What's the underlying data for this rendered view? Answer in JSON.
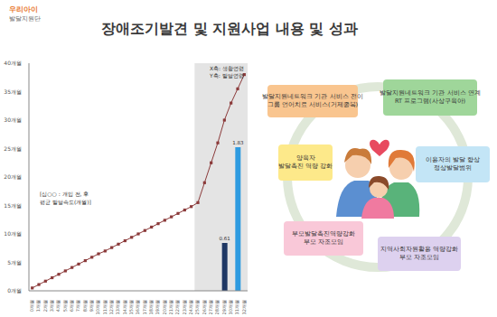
{
  "header": {
    "logo": [
      "우리아이",
      "발달지원단"
    ],
    "title": "장애조기발견 및 지원사업 내용 및 성과"
  },
  "chart_data": {
    "type": "line",
    "categories": [
      "0개월",
      "1개월",
      "2개월",
      "3개월",
      "4개월",
      "5개월",
      "6개월",
      "7개월",
      "8개월",
      "9개월",
      "10개월",
      "11개월",
      "12개월",
      "13개월",
      "14개월",
      "15개월",
      "16개월",
      "17개월",
      "18개월",
      "19개월",
      "20개월",
      "21개월",
      "22개월",
      "23개월",
      "24개월",
      "25개월",
      "26개월",
      "27개월",
      "28개월",
      "29개월",
      "30개월",
      "31개월",
      "32개월"
    ],
    "series": [
      {
        "type": "line",
        "color": "#8b3a3a",
        "marker": "square",
        "values": [
          0.5,
          1.1,
          1.7,
          2.3,
          2.9,
          3.5,
          4.1,
          4.7,
          5.3,
          5.9,
          6.5,
          7.0,
          7.6,
          8.2,
          8.8,
          9.4,
          10.0,
          10.6,
          11.2,
          11.8,
          12.4,
          13.0,
          13.6,
          14.2,
          14.8,
          15.5,
          19,
          22.5,
          26,
          30,
          33,
          35.5,
          38
        ]
      },
      {
        "type": "bar",
        "axis": "y2",
        "data_labels": true,
        "values": [
          null,
          null,
          null,
          null,
          null,
          null,
          null,
          null,
          null,
          null,
          null,
          null,
          null,
          null,
          null,
          null,
          null,
          null,
          null,
          null,
          null,
          null,
          null,
          null,
          null,
          null,
          null,
          null,
          null,
          0.61,
          null,
          1.83,
          null
        ],
        "colors": [
          null,
          null,
          null,
          null,
          null,
          null,
          null,
          null,
          null,
          null,
          null,
          null,
          null,
          null,
          null,
          null,
          null,
          null,
          null,
          null,
          null,
          null,
          null,
          null,
          null,
          null,
          null,
          null,
          null,
          "#1f3864",
          null,
          "#2e9be0",
          null
        ]
      }
    ],
    "ylim": [
      0,
      40
    ],
    "yticks": [
      {
        "value": 0,
        "label": "0개월"
      },
      {
        "value": 5,
        "label": "5개월"
      },
      {
        "value": 10,
        "label": "10개월"
      },
      {
        "value": 15,
        "label": "15개월"
      },
      {
        "value": 20,
        "label": "20개월"
      },
      {
        "value": 25,
        "label": "25개월"
      },
      {
        "value": 30,
        "label": "30개월"
      },
      {
        "value": 35,
        "label": "35개월"
      },
      {
        "value": 40,
        "label": "40개월"
      }
    ],
    "y2lim": [
      0,
      2.9
    ],
    "y2ticks": [],
    "grid": false,
    "highlight": {
      "from": "25개월",
      "to": "32개월",
      "color": "#e4e4e4"
    },
    "annotations": {
      "axes_note": [
        "X축: 생활연령",
        "Y축: 발달연령"
      ],
      "bars_note": [
        "[심○○ : 개입 전, 후",
        "평균 발달속도(개월)]"
      ]
    }
  },
  "diagram": {
    "nodes": [
      {
        "label": [
          "발달지원네트워크 기관 서비스 전이",
          "그룹 언어치료 서비스(거제종복)"
        ],
        "color": "#f9c58f"
      },
      {
        "label": [
          "발달지원네트워크 기관 서비스 연계",
          "RT 프로그램(사상구육아)"
        ],
        "color": "#9fd69a"
      },
      {
        "label": [
          "양육자",
          "발달촉진 역량 강화"
        ],
        "color": "#fde98a"
      },
      {
        "label": [
          "이용자의 발달 향상",
          "정상발달범위"
        ],
        "color": "#c3e5f6"
      },
      {
        "label": [
          "부모발달촉진역량강화",
          "부모 자조모임"
        ],
        "color": "#f9c8d8"
      },
      {
        "label": [
          "지역사회자원활용 역량강화",
          "부모 자조모임"
        ],
        "color": "#ddd1ef"
      }
    ]
  }
}
